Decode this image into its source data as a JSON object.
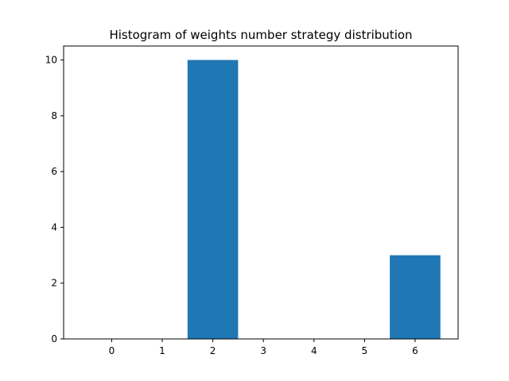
{
  "chart_data": {
    "type": "bar",
    "title": "Histogram of weights number strategy distribution",
    "xlabel": "",
    "ylabel": "",
    "categories": [
      "0",
      "1",
      "2",
      "3",
      "4",
      "5",
      "6"
    ],
    "x": [
      0,
      1,
      2,
      3,
      4,
      5,
      6
    ],
    "values": [
      0,
      0,
      10,
      0,
      0,
      0,
      3
    ],
    "bar_width": 1,
    "xlim": [
      -0.95,
      6.85
    ],
    "ylim": [
      0,
      10.5
    ],
    "yticks": [
      0,
      2,
      4,
      6,
      8,
      10
    ],
    "grid": false,
    "bar_color": "#1f77b4"
  }
}
